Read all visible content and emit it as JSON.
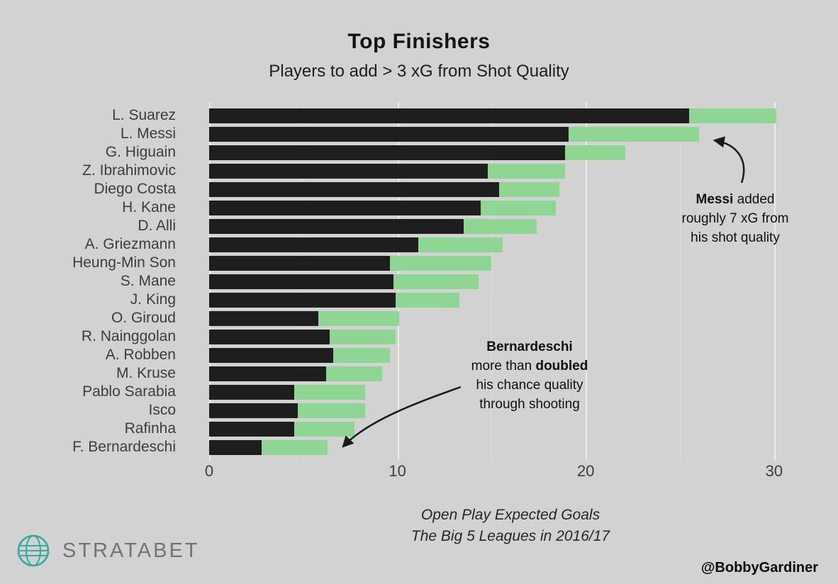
{
  "header": {
    "title": "Top Finishers",
    "subtitle": "Players to add > 3 xG from Shot Quality"
  },
  "chart_data": {
    "type": "bar",
    "orientation": "horizontal",
    "stacked": true,
    "grid": true,
    "legend_position": "none",
    "categories": [
      "L. Suarez",
      "L. Messi",
      "G. Higuain",
      "Z. Ibrahimovic",
      "Diego Costa",
      "H. Kane",
      "D. Alli",
      "A. Griezmann",
      "Heung-Min Son",
      "S. Mane",
      "J. King",
      "O. Giroud",
      "R. Nainggolan",
      "A. Robben",
      "M. Kruse",
      "Pablo Sarabia",
      "Isco",
      "Rafinha",
      "F. Bernardeschi"
    ],
    "series": [
      {
        "name": "Open play xG (base)",
        "color": "#1e1e1e",
        "values": [
          25.5,
          19.1,
          18.9,
          14.8,
          15.4,
          14.4,
          13.5,
          11.1,
          9.6,
          9.8,
          9.9,
          5.8,
          6.4,
          6.6,
          6.2,
          4.5,
          4.7,
          4.5,
          2.8
        ]
      },
      {
        "name": "xG added from shot quality",
        "color": "#8fd694",
        "values": [
          4.6,
          6.9,
          3.2,
          4.1,
          3.2,
          4.0,
          3.9,
          4.5,
          5.4,
          4.5,
          3.4,
          4.3,
          3.5,
          3.0,
          3.0,
          3.8,
          3.6,
          3.2,
          3.5
        ]
      }
    ],
    "x_ticks": [
      0,
      10,
      20,
      30
    ],
    "x_minor_ticks": [
      5,
      15,
      25
    ],
    "xlim": [
      0,
      32
    ],
    "xlabel": "",
    "ylabel": "",
    "caption_line1": "Open Play Expected Goals",
    "caption_line2": "The Big 5 Leagues in 2016/17"
  },
  "annotations": {
    "messi": {
      "l1_bold": "Messi",
      "l1_rest": " added",
      "l2": "roughly 7 xG from",
      "l3": "his shot quality"
    },
    "bernardeschi": {
      "l1_bold": "Bernardeschi",
      "l2_pre": "more than ",
      "l2_bold": "doubled",
      "l3": "his chance quality",
      "l4": "through shooting"
    }
  },
  "footer": {
    "brand": "STRATABET",
    "credit": "@BobbyGardiner"
  },
  "colors": {
    "background": "#d2d2d2",
    "bar_base": "#1e1e1e",
    "bar_added": "#8fd694",
    "logo_teal": "#39aaa0"
  }
}
